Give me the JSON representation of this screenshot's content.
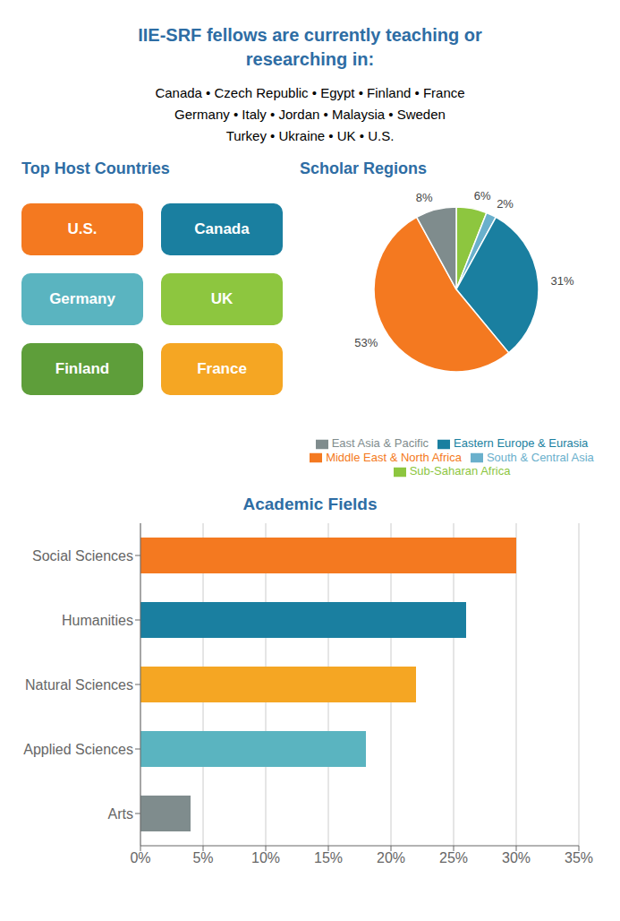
{
  "title": "IIE-SRF fellows are currently teaching or\nresearching in:",
  "color": "#2e6da4",
  "subtitle": [
    "Canada • Czech Republic • Egypt • Finland • France",
    "Germany • Italy • Jordan • Malaysia • Sweden",
    "Turkey • Ukraine • UK • U.S."
  ],
  "annotations": [
    {
      "text": "Top Host Countries"
    },
    {
      "text": "U.S.",
      "color": "#f47920"
    },
    {
      "text": "Canada",
      "color": "#1a7fa0"
    },
    {
      "text": "Germany",
      "color": "#5ab4c0"
    },
    {
      "text": "UK",
      "color": "#8dc63f"
    },
    {
      "text": "Finland",
      "color": "#5e9e3a"
    },
    {
      "text": "France",
      "color": "#f5a623"
    }
  ],
  "chart_data": [
    {
      "type": "pie",
      "title": "Scholar Regions",
      "categories": [
        "Sub-Saharan Africa",
        "South & Central Asia",
        "Eastern Europe & Eurasia",
        "Middle East & North Africa",
        "East Asia & Pacific"
      ],
      "values": [
        6,
        2,
        31,
        53,
        8
      ],
      "value_labels": [
        "6%",
        "2%",
        "31%",
        "53%",
        "8%"
      ],
      "colors": [
        "#8dc63f",
        "#6ab0cc",
        "#1a7fa0",
        "#f47920",
        "#7f8c8d"
      ],
      "data_labels": true,
      "legend": "bottom"
    },
    {
      "type": "bar",
      "title": "Academic Fields",
      "orientation": "horizontal",
      "categories": [
        "Social Sciences",
        "Humanities",
        "Natural Sciences",
        "Applied Sciences",
        "Arts"
      ],
      "values": [
        30,
        26,
        22,
        18,
        4
      ],
      "colors": [
        "#f47920",
        "#1a7fa0",
        "#f5a623",
        "#5ab4c0",
        "#7f8c8d"
      ],
      "xlim": [
        0,
        35
      ],
      "xticks": [
        {
          "value": 0,
          "label": "0%"
        },
        {
          "value": 5,
          "label": "5%"
        },
        {
          "value": 10,
          "label": "10%"
        },
        {
          "value": 15,
          "label": "15%"
        },
        {
          "value": 20,
          "label": "20%"
        },
        {
          "value": 25,
          "label": "25%"
        },
        {
          "value": 30,
          "label": "30%"
        },
        {
          "value": 35,
          "label": "35%"
        }
      ],
      "grid": true
    }
  ]
}
